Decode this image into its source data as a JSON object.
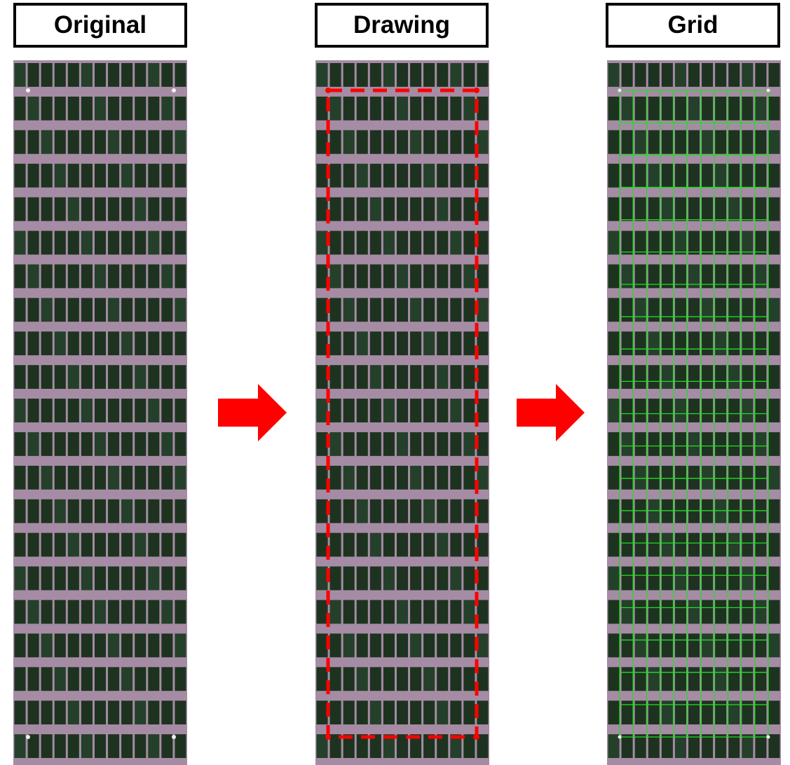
{
  "panels": [
    {
      "id": "original",
      "label": "Original"
    },
    {
      "id": "drawing",
      "label": "Drawing"
    },
    {
      "id": "grid",
      "label": "Grid"
    }
  ],
  "field": {
    "plot_rows": 21,
    "plot_columns": 13,
    "soil_color": "#a58ca4",
    "plant_color": "#1d3320",
    "plant_alt_color": "#24402a"
  },
  "overlay": {
    "dashed_outline_color": "#ff0000",
    "grid_line_color": "#22dd22",
    "grid_rows": 20,
    "grid_columns": 11
  },
  "arrow_color": "#ff0000"
}
